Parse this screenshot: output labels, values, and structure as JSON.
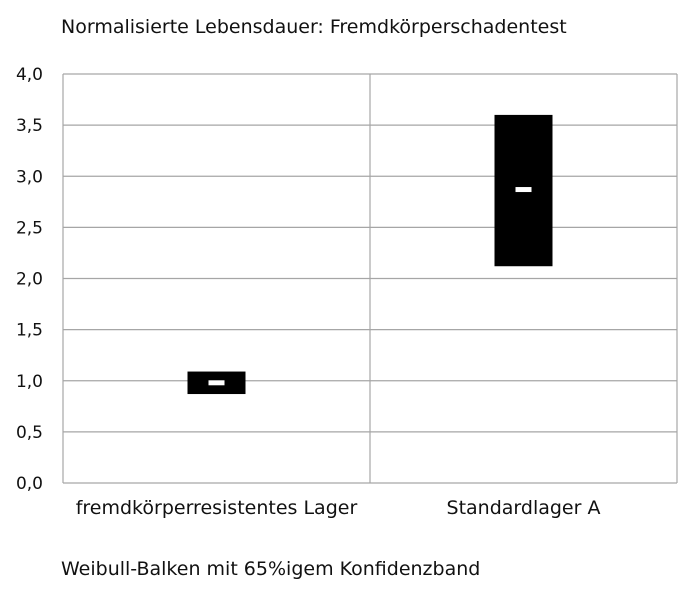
{
  "chart_data": {
    "type": "bar",
    "title": "Normalisierte Lebensdauer: Fremdkörperschadentest",
    "footer": "Weibull-Balken mit 65%igem Konfidenzband",
    "categories": [
      "fremdkörperresistentes Lager",
      "Standardlager A"
    ],
    "series": [
      {
        "low": [
          0.87,
          2.12
        ],
        "high": [
          1.09,
          3.6
        ],
        "median": [
          0.98,
          2.87
        ]
      }
    ],
    "ylim": [
      0,
      4
    ],
    "yticks": [
      0,
      0.5,
      1,
      1.5,
      2,
      2.5,
      3,
      3.5,
      4
    ],
    "ytick_labels": [
      "0,0",
      "0,5",
      "1,0",
      "1,5",
      "2,0",
      "2,5",
      "3,0",
      "3,5",
      "4,0"
    ],
    "grid": true,
    "colors": {
      "bar": "#000000",
      "median": "#ffffff",
      "grid": "#a6a6a6"
    }
  }
}
